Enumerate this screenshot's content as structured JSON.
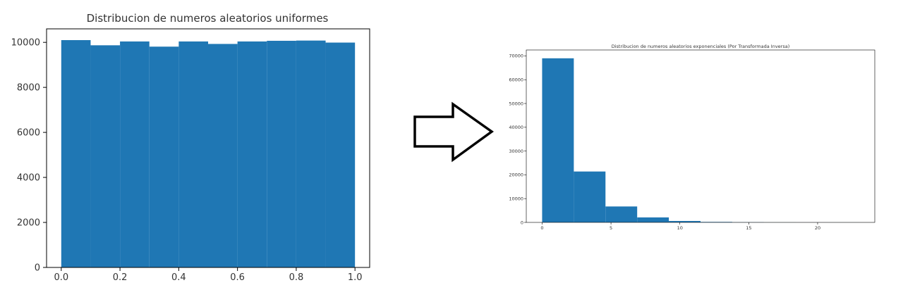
{
  "chart_data": [
    {
      "type": "bar",
      "title": "Distribucion de numeros aleatorios uniformes",
      "xlabel": "",
      "ylabel": "",
      "x_bin_edges": [
        0.0,
        0.1,
        0.2,
        0.3,
        0.4,
        0.5,
        0.6,
        0.7,
        0.8,
        0.9,
        1.0
      ],
      "values": [
        10100,
        9870,
        10040,
        9810,
        10040,
        9930,
        10040,
        10070,
        10080,
        9990
      ],
      "xlim": [
        -0.05,
        1.05
      ],
      "ylim": [
        0,
        10600
      ],
      "x_ticks": [
        0.0,
        0.2,
        0.4,
        0.6,
        0.8,
        1.0
      ],
      "x_tick_labels": [
        "0.0",
        "0.2",
        "0.4",
        "0.6",
        "0.8",
        "1.0"
      ],
      "y_ticks": [
        0,
        2000,
        4000,
        6000,
        8000,
        10000
      ],
      "y_tick_labels": [
        "0",
        "2000",
        "4000",
        "6000",
        "8000",
        "10000"
      ],
      "bar_color": "#1f77b4",
      "grid": false,
      "legend": "none"
    },
    {
      "type": "bar",
      "title": "Distribucion de numeros aleatorios exponenciales (Por Transformada Inversa)",
      "xlabel": "",
      "ylabel": "",
      "x_bin_edges": [
        0.0,
        2.3,
        4.6,
        6.9,
        9.2,
        11.5,
        13.8,
        16.1,
        18.4,
        20.7,
        23.0
      ],
      "values": [
        69000,
        21400,
        6700,
        2100,
        600,
        200,
        60,
        20,
        10,
        5
      ],
      "xlim": [
        -1.15,
        24.15
      ],
      "ylim": [
        0,
        72500
      ],
      "x_ticks": [
        0,
        5,
        10,
        15,
        20
      ],
      "x_tick_labels": [
        "0",
        "5",
        "10",
        "15",
        "20"
      ],
      "y_ticks": [
        0,
        10000,
        20000,
        30000,
        40000,
        50000,
        60000,
        70000
      ],
      "y_tick_labels": [
        "0",
        "10000",
        "20000",
        "30000",
        "40000",
        "50000",
        "60000",
        "70000"
      ],
      "bar_color": "#1f77b4",
      "grid": false,
      "legend": "none"
    }
  ],
  "arrow": {
    "icon": "right-arrow-icon",
    "fill": "#ffffff",
    "stroke": "#000000"
  }
}
